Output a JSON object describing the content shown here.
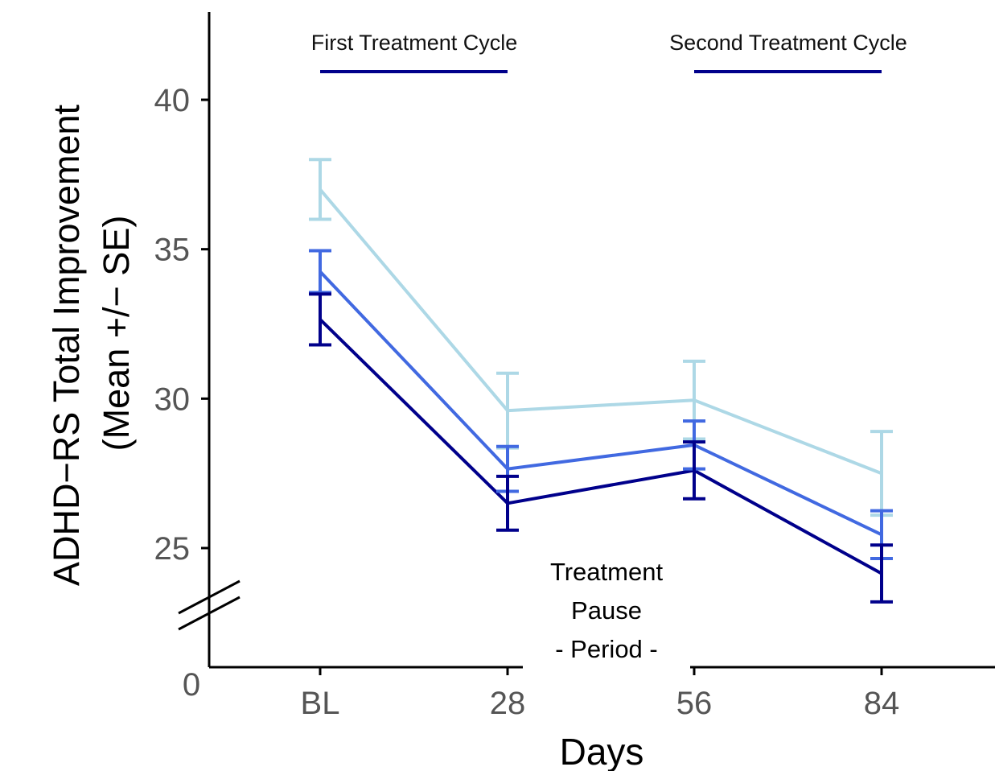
{
  "chart_data": {
    "type": "line",
    "title": "",
    "xlabel": "Days",
    "ylabel_lines": [
      "ADHD−RS Total Improvement",
      "(Mean +/− SE)"
    ],
    "categories": [
      "BL",
      "28",
      "56",
      "84"
    ],
    "y_ticks": [
      25,
      30,
      35,
      40
    ],
    "y_break_label": "0",
    "ylim": [
      22.7,
      41.5
    ],
    "y_axis_break": true,
    "grid": false,
    "legend": "none",
    "series": [
      {
        "color": "#add8e6",
        "values": [
          37.0,
          29.6,
          29.95,
          27.5
        ],
        "se": [
          1.0,
          1.25,
          1.3,
          1.4
        ]
      },
      {
        "color": "#4169e1",
        "values": [
          34.25,
          27.65,
          28.45,
          25.45
        ],
        "se": [
          0.7,
          0.75,
          0.8,
          0.8
        ]
      },
      {
        "color": "#00008b",
        "values": [
          32.65,
          26.5,
          27.6,
          24.15
        ],
        "se": [
          0.85,
          0.9,
          0.95,
          0.95
        ]
      }
    ],
    "annotations": {
      "first_cycle_label": "First Treatment Cycle",
      "second_cycle_label": "Second Treatment Cycle",
      "cycle_bar_color": "#00008b",
      "pause_lines": [
        "Treatment",
        "Pause",
        "- Period -"
      ]
    }
  }
}
